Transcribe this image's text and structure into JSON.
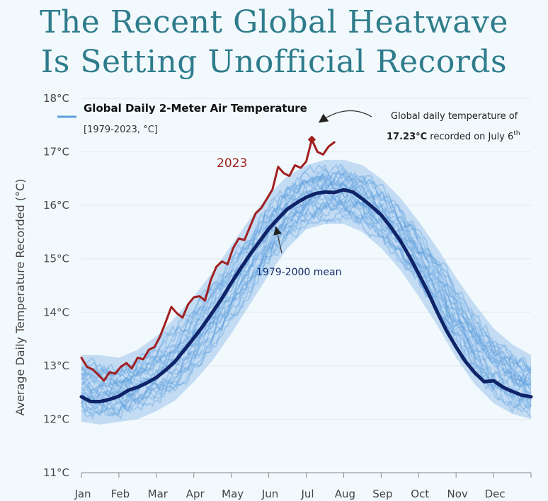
{
  "title_line1": "The Recent Global Heatwave",
  "title_line2": "Is Setting Unofficial Records",
  "colors": {
    "title": "#2e7c8c",
    "years_band": "#5b9fdc",
    "line_2023": "#a11f1f",
    "mean_line": "#0f2468",
    "background": "#f2f9fc"
  },
  "chart_data": {
    "type": "line",
    "title": "Global Daily 2-Meter Air Temperature",
    "subtitle": "[1979-2023, °C]",
    "xlabel": "",
    "ylabel": "Average Daily Temperature Recorded (°C)",
    "ylim": [
      11,
      18
    ],
    "yticks": [
      11,
      12,
      13,
      14,
      15,
      16,
      17,
      18
    ],
    "ytick_labels": [
      "11°C",
      "12°C",
      "13°C",
      "14°C",
      "15°C",
      "16°C",
      "17°C",
      "18°C"
    ],
    "xlim": [
      0,
      12
    ],
    "categories": [
      "Jan",
      "Feb",
      "Mar",
      "Apr",
      "May",
      "Jun",
      "Jul",
      "Aug",
      "Sep",
      "Oct",
      "Nov",
      "Dec"
    ],
    "grid": true,
    "legend": "top-left",
    "legend_label": "Global Daily 2-Meter Air Temperature",
    "series": [
      {
        "name": "1979-2000 mean",
        "x": [
          0,
          0.25,
          0.5,
          0.75,
          1,
          1.25,
          1.5,
          1.75,
          2,
          2.25,
          2.5,
          2.75,
          3,
          3.25,
          3.5,
          3.75,
          4,
          4.25,
          4.5,
          4.75,
          5,
          5.25,
          5.5,
          5.75,
          6,
          6.25,
          6.5,
          6.75,
          7,
          7.25,
          7.5,
          7.75,
          8,
          8.25,
          8.5,
          8.75,
          9,
          9.25,
          9.5,
          9.75,
          10,
          10.25,
          10.5,
          10.75,
          11,
          11.25,
          11.5,
          11.75,
          12
        ],
        "values": [
          12.42,
          12.33,
          12.33,
          12.37,
          12.43,
          12.54,
          12.6,
          12.68,
          12.78,
          12.92,
          13.08,
          13.3,
          13.52,
          13.75,
          14.0,
          14.26,
          14.55,
          14.82,
          15.08,
          15.32,
          15.56,
          15.75,
          15.93,
          16.05,
          16.15,
          16.22,
          16.25,
          16.24,
          16.29,
          16.25,
          16.12,
          15.98,
          15.82,
          15.6,
          15.35,
          15.05,
          14.72,
          14.38,
          14.0,
          13.65,
          13.35,
          13.08,
          12.87,
          12.7,
          12.72,
          12.6,
          12.52,
          12.45,
          12.42
        ]
      },
      {
        "name": "2023",
        "x": [
          0,
          0.15,
          0.3,
          0.45,
          0.6,
          0.75,
          0.9,
          1.05,
          1.2,
          1.35,
          1.5,
          1.65,
          1.8,
          1.95,
          2.1,
          2.25,
          2.4,
          2.55,
          2.7,
          2.85,
          3.0,
          3.15,
          3.3,
          3.45,
          3.6,
          3.75,
          3.9,
          4.05,
          4.2,
          4.35,
          4.5,
          4.65,
          4.8,
          4.95,
          5.1,
          5.25,
          5.4,
          5.55,
          5.7,
          5.85,
          6.0,
          6.15,
          6.3,
          6.45,
          6.6,
          6.75
        ],
        "values": [
          13.15,
          12.98,
          12.93,
          12.83,
          12.72,
          12.88,
          12.85,
          12.98,
          13.05,
          12.95,
          13.15,
          13.12,
          13.3,
          13.35,
          13.55,
          13.82,
          14.1,
          13.98,
          13.9,
          14.15,
          14.28,
          14.3,
          14.22,
          14.6,
          14.85,
          14.95,
          14.9,
          15.2,
          15.38,
          15.35,
          15.6,
          15.85,
          15.95,
          16.12,
          16.3,
          16.72,
          16.6,
          16.55,
          16.75,
          16.7,
          16.82,
          17.23,
          17.0,
          16.95,
          17.1,
          17.18
        ]
      }
    ],
    "band": {
      "name": "1979-2023 individual years",
      "x": [
        0,
        0.5,
        1,
        1.5,
        2,
        2.5,
        3,
        3.5,
        4,
        4.5,
        5,
        5.5,
        6,
        6.5,
        7,
        7.5,
        8,
        8.5,
        9,
        9.5,
        10,
        10.5,
        11,
        11.5,
        12
      ],
      "upper": [
        13.2,
        13.2,
        13.15,
        13.3,
        13.55,
        13.9,
        14.3,
        14.75,
        15.25,
        15.75,
        16.2,
        16.55,
        16.75,
        16.85,
        16.85,
        16.75,
        16.5,
        16.15,
        15.7,
        15.2,
        14.65,
        14.15,
        13.7,
        13.4,
        13.2
      ],
      "lower": [
        11.95,
        11.9,
        11.95,
        12.0,
        12.15,
        12.35,
        12.7,
        13.1,
        13.6,
        14.15,
        14.7,
        15.2,
        15.55,
        15.65,
        15.65,
        15.5,
        15.2,
        14.8,
        14.3,
        13.75,
        13.15,
        12.65,
        12.3,
        12.1,
        12.0
      ]
    },
    "annotations": [
      {
        "text": "2023",
        "target": "2023 series"
      },
      {
        "text": "1979-2000 mean",
        "target": "mean series"
      },
      {
        "text_line1": "Global daily temperature of",
        "text_line2_bold": "17.23°C",
        "text_line2_rest": " recorded on July 6",
        "superscript": "th",
        "value": 17.23,
        "date": "July 6th"
      }
    ]
  }
}
